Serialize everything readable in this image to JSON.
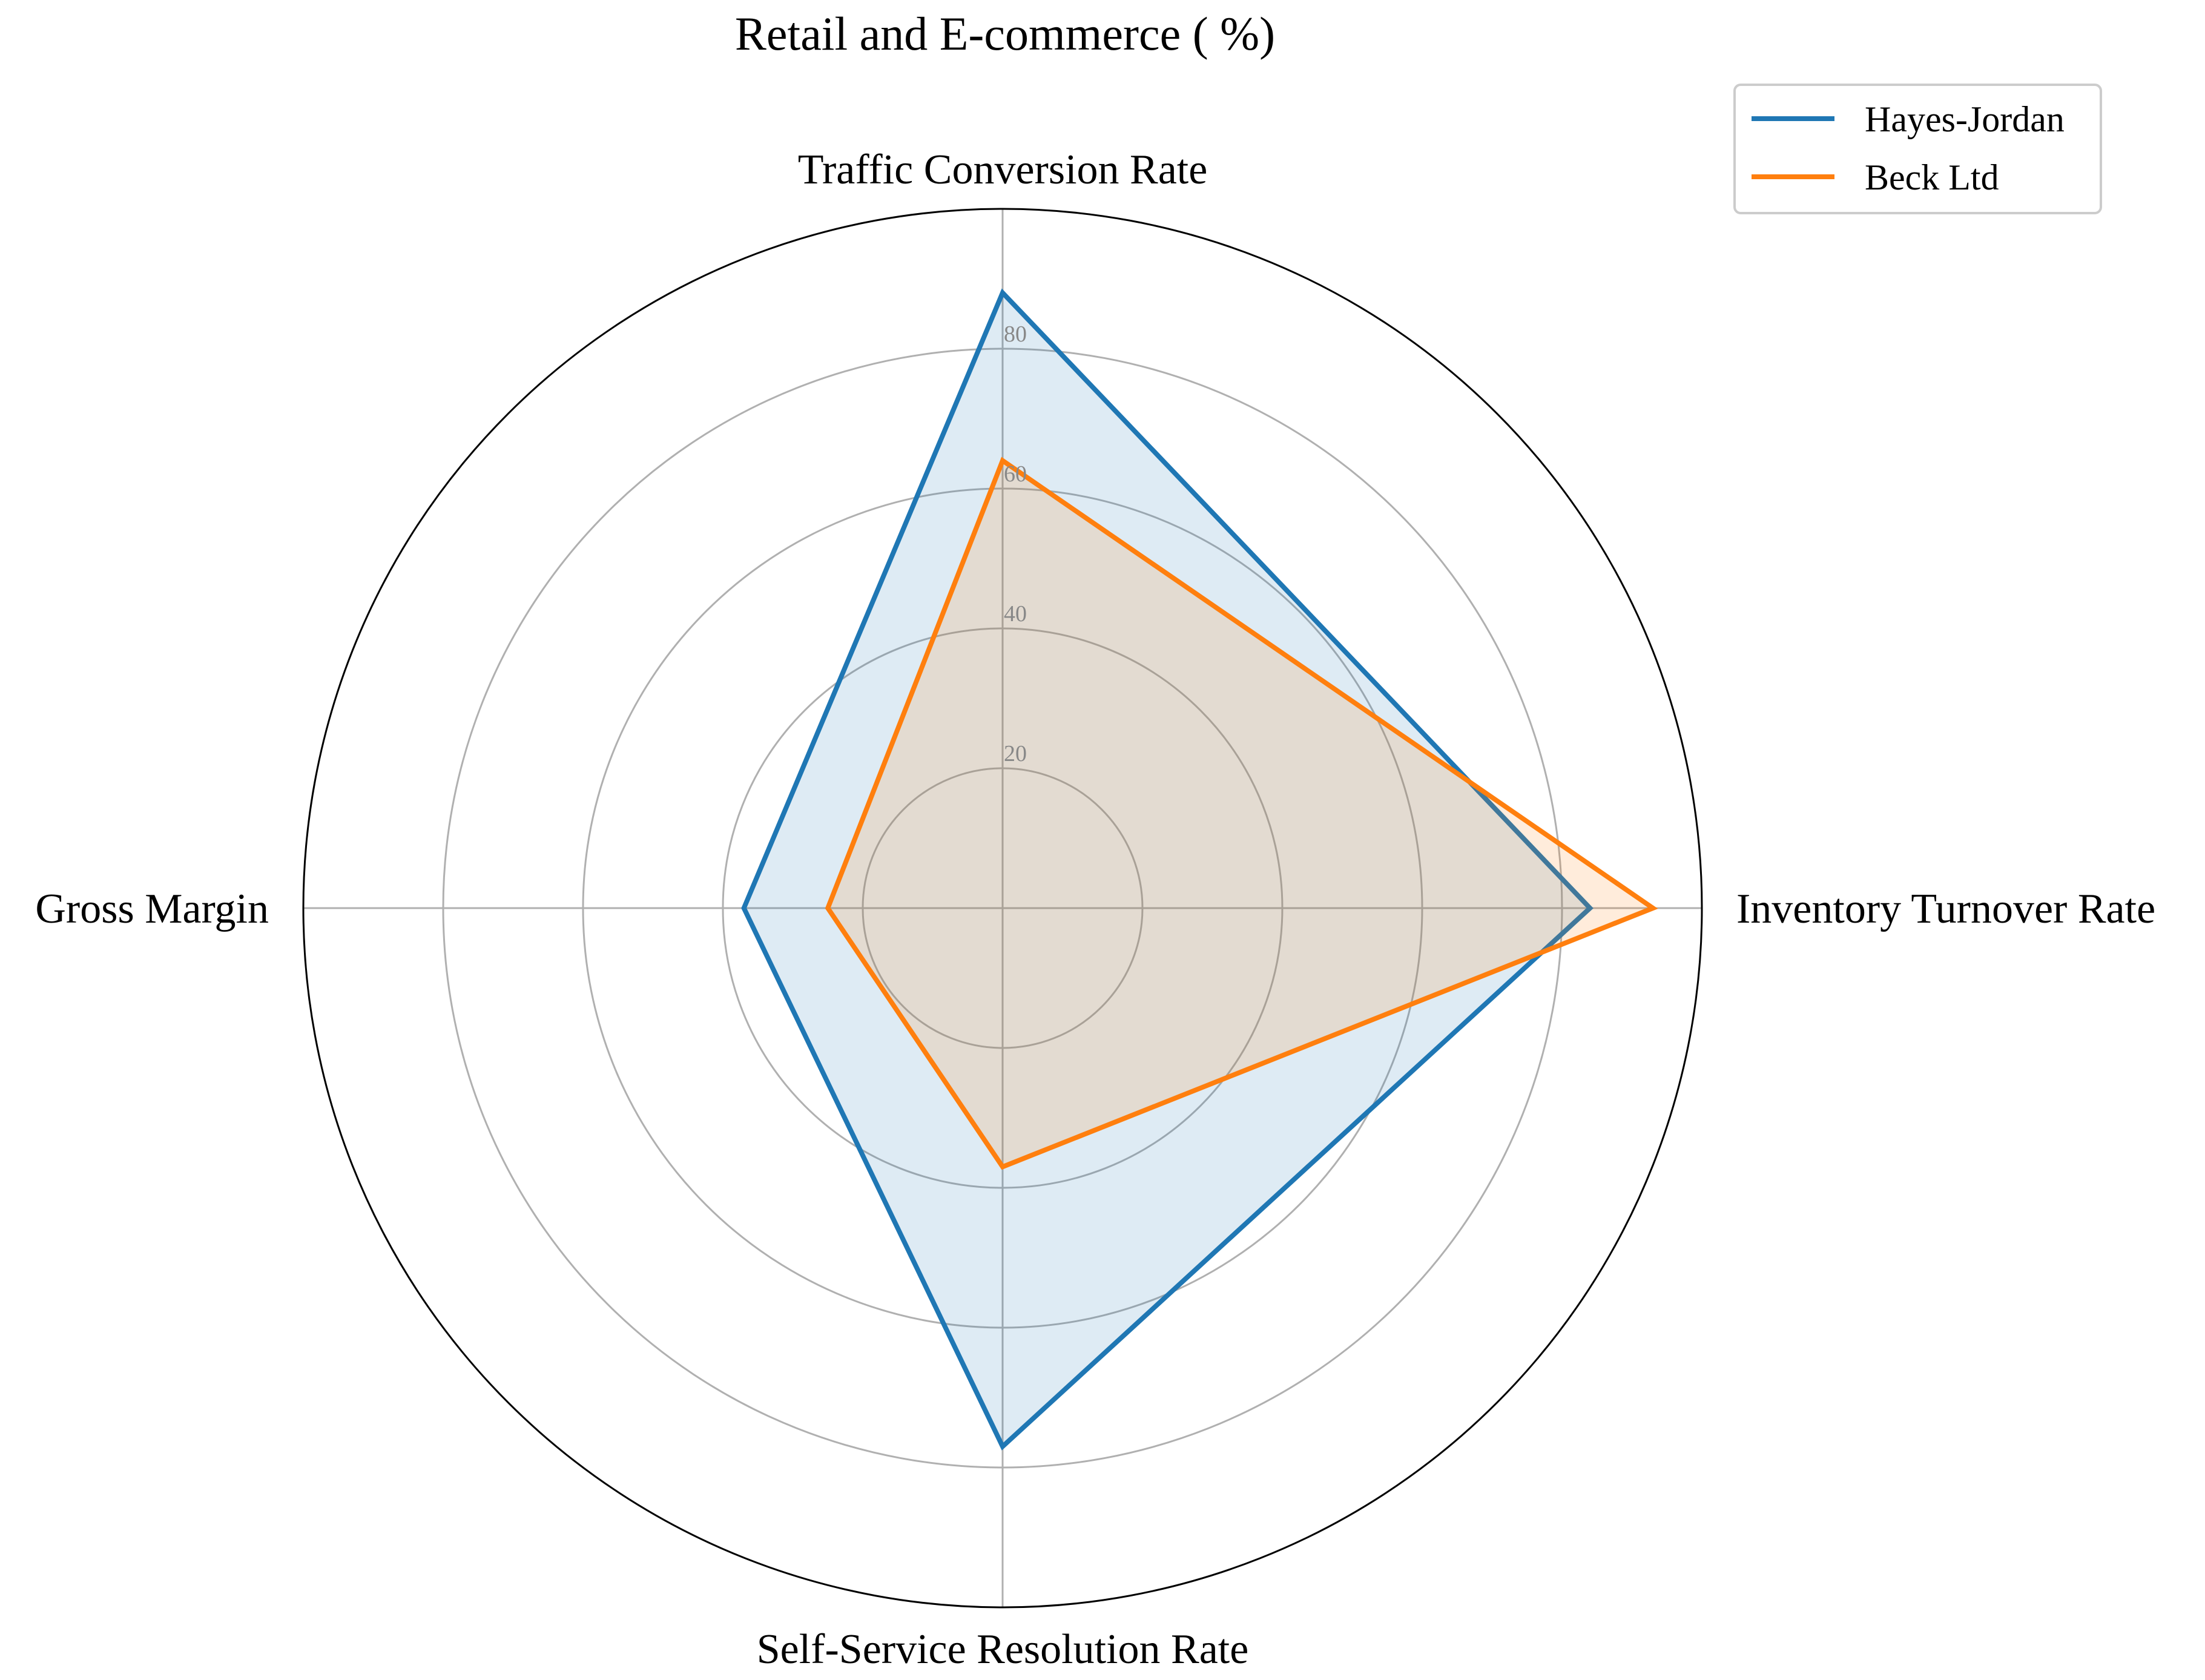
{
  "chart_data": {
    "type": "radar",
    "title": "Retail and E-commerce ( %)",
    "axes": [
      "Traffic Conversion Rate",
      "Inventory Turnover Rate",
      "Self-Service Resolution Rate",
      "Gross Margin"
    ],
    "rlim": [
      0,
      100
    ],
    "radial_ticks": [
      20,
      40,
      60,
      80
    ],
    "grid": true,
    "legend_position": "top-right",
    "series": [
      {
        "name": "Hayes-Jordan",
        "color": "#1f77b4",
        "values": [
          88,
          84,
          77,
          37
        ]
      },
      {
        "name": "Beck Ltd",
        "color": "#ff7f0e",
        "values": [
          64,
          93,
          37,
          25
        ]
      }
    ]
  }
}
